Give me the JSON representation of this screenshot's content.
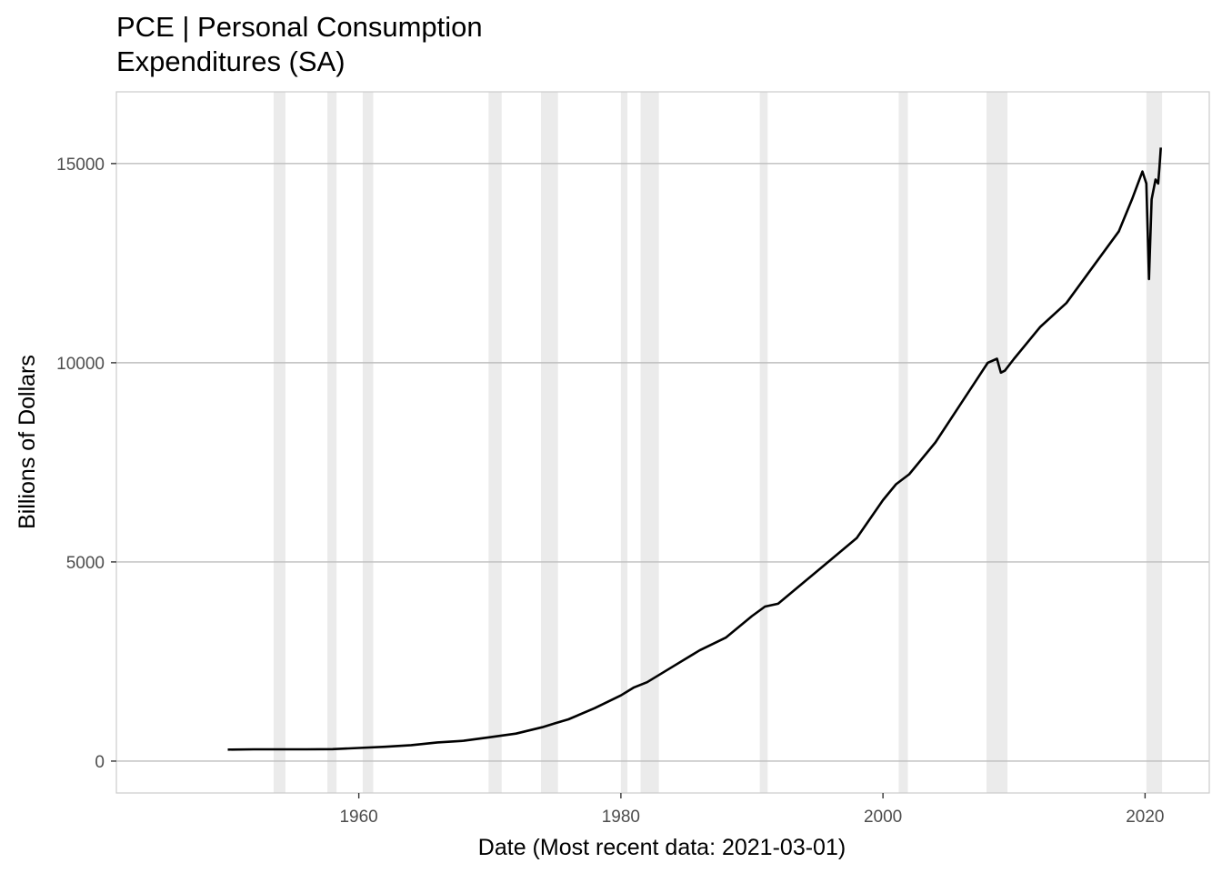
{
  "chart_data": {
    "type": "line",
    "title_lines": [
      "PCE | Personal Consumption",
      "Expenditures (SA)"
    ],
    "xlabel": "Date (Most recent data: 2021-03-01)",
    "ylabel": "Billions of Dollars",
    "xlim": [
      1941.5,
      2024.9
    ],
    "ylim": [
      -800,
      16800
    ],
    "x_ticks": [
      1960,
      1980,
      2000,
      2020
    ],
    "x_tick_labels": [
      "1960",
      "1980",
      "2000",
      "2020"
    ],
    "y_ticks": [
      0,
      5000,
      10000,
      15000
    ],
    "y_tick_labels": [
      "0",
      "5000",
      "10000",
      "15000"
    ],
    "grid": "horizontal",
    "legend": "none",
    "recessions": [
      [
        1953.5,
        1954.4
      ],
      [
        1957.6,
        1958.3
      ],
      [
        1960.3,
        1961.1
      ],
      [
        1969.9,
        1970.9
      ],
      [
        1973.9,
        1975.2
      ],
      [
        1980.0,
        1980.5
      ],
      [
        1981.5,
        1982.9
      ],
      [
        1990.6,
        1991.2
      ],
      [
        2001.2,
        2001.9
      ],
      [
        2007.9,
        2009.5
      ],
      [
        2020.1,
        2021.3
      ]
    ],
    "series": [
      {
        "x": [
          1950,
          1952,
          1954,
          1956,
          1958,
          1960,
          1962,
          1964,
          1966,
          1968,
          1970,
          1972,
          1974,
          1975,
          1976,
          1978,
          1980,
          1981,
          1982,
          1984,
          1986,
          1988,
          1990,
          1991,
          1992,
          1994,
          1996,
          1998,
          2000,
          2001,
          2002,
          2004,
          2006,
          2007,
          2008,
          2008.7,
          2009,
          2009.3,
          2010,
          2012,
          2014,
          2016,
          2018,
          2019,
          2019.8,
          2020.1,
          2020.3,
          2020.5,
          2020.8,
          2021.0,
          2021.1,
          2021.2
        ],
        "y": [
          290,
          295,
          295,
          295,
          300,
          330,
          360,
          400,
          470,
          510,
          600,
          690,
          850,
          950,
          1050,
          1330,
          1650,
          1850,
          1980,
          2380,
          2780,
          3100,
          3640,
          3880,
          3950,
          4500,
          5050,
          5600,
          6550,
          6950,
          7200,
          8000,
          9000,
          9500,
          10000,
          10100,
          9750,
          9800,
          10100,
          10900,
          11500,
          12400,
          13300,
          14100,
          14800,
          14500,
          12100,
          14100,
          14600,
          14500,
          14900,
          15400
        ]
      }
    ],
    "colors": {
      "line": "#000000",
      "recession": "#ebebeb",
      "grid": "#bebebe",
      "frame": "#cccccc"
    }
  }
}
